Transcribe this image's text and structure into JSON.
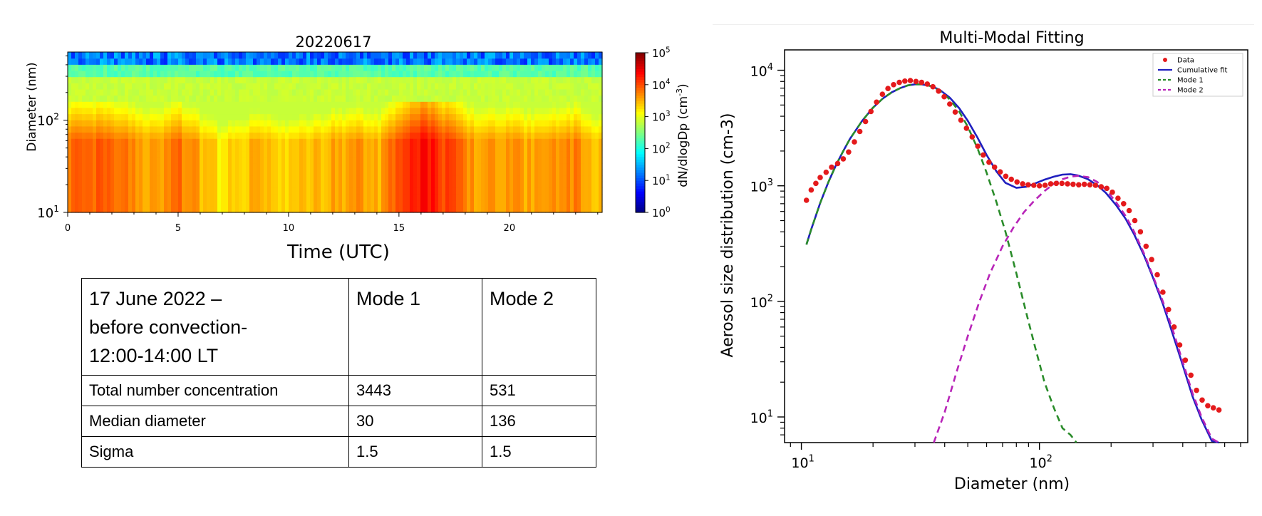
{
  "colors": {
    "data_points": "#e41a1c",
    "cumulative_fit": "#1f1fbf",
    "mode1": "#2a8c2a",
    "mode2": "#b824b8",
    "colormap": "jet"
  },
  "chart_data": [
    {
      "type": "heatmap",
      "title": "20220617",
      "xlabel": "Time (UTC)",
      "ylabel": "Diameter (nm)",
      "xlim": [
        0,
        24.2
      ],
      "ylim": [
        10,
        550
      ],
      "yscale": "log",
      "x_ticks": [
        "0",
        "5",
        "10",
        "15",
        "20"
      ],
      "y_ticks": [
        {
          "base": "10",
          "exp": "1"
        },
        {
          "base": "10",
          "exp": "2"
        }
      ],
      "colorbar": {
        "label": "dN/dlogDp",
        "unit_base": "(cm",
        "unit_exp": "-3",
        "unit_close": ")",
        "scale": "log",
        "range": [
          1,
          100000
        ],
        "ticks": [
          {
            "base": "10",
            "exp": "5"
          },
          {
            "base": "10",
            "exp": "4"
          },
          {
            "base": "10",
            "exp": "3"
          },
          {
            "base": "10",
            "exp": "2"
          },
          {
            "base": "10",
            "exp": "1"
          },
          {
            "base": "10",
            "exp": "0"
          }
        ]
      },
      "intensity_by_time": [
        {
          "t": 0,
          "level": 3.9
        },
        {
          "t": 1,
          "level": 3.9
        },
        {
          "t": 2,
          "level": 3.8
        },
        {
          "t": 3,
          "level": 3.7
        },
        {
          "t": 4,
          "level": 3.6
        },
        {
          "t": 5,
          "level": 3.8
        },
        {
          "t": 6,
          "level": 3.5
        },
        {
          "t": 7,
          "level": 3.2
        },
        {
          "t": 8,
          "level": 3.4
        },
        {
          "t": 9,
          "level": 3.5
        },
        {
          "t": 10,
          "level": 3.3
        },
        {
          "t": 11,
          "level": 3.4
        },
        {
          "t": 12,
          "level": 3.6
        },
        {
          "t": 13,
          "level": 3.6
        },
        {
          "t": 14,
          "level": 3.5
        },
        {
          "t": 15,
          "level": 3.9
        },
        {
          "t": 16,
          "level": 4.4
        },
        {
          "t": 17,
          "level": 4.1
        },
        {
          "t": 18,
          "level": 3.7
        },
        {
          "t": 19,
          "level": 3.6
        },
        {
          "t": 20,
          "level": 3.7
        },
        {
          "t": 21,
          "level": 3.5
        },
        {
          "t": 22,
          "level": 3.6
        },
        {
          "t": 23,
          "level": 3.7
        },
        {
          "t": 24,
          "level": 3.4
        }
      ]
    },
    {
      "type": "line",
      "title": "Multi-Modal Fitting",
      "xlabel": "Diameter (nm)",
      "ylabel": "Aerosol size distribution (cm-3)",
      "xscale": "log",
      "yscale": "log",
      "xlim": [
        8.5,
        750
      ],
      "ylim": [
        6,
        15000
      ],
      "x_ticks": [
        {
          "base": "10",
          "exp": "1"
        },
        {
          "base": "10",
          "exp": "2"
        }
      ],
      "y_ticks": [
        {
          "base": "10",
          "exp": "4"
        },
        {
          "base": "10",
          "exp": "3"
        },
        {
          "base": "10",
          "exp": "2"
        },
        {
          "base": "10",
          "exp": "1"
        }
      ],
      "legend_position": "top-right",
      "series": [
        {
          "name": "Data",
          "style": "points",
          "x": [
            10.5,
            11,
            11.5,
            12,
            12.7,
            13.4,
            14.2,
            15,
            15.8,
            16.7,
            17.6,
            18.6,
            19.6,
            20.7,
            21.9,
            23.1,
            24.4,
            25.8,
            27.2,
            28.7,
            30.3,
            32,
            33.8,
            35.7,
            37.7,
            39.8,
            42,
            44.3,
            46.8,
            49.4,
            52.2,
            55.1,
            58.1,
            61.4,
            64.8,
            68.4,
            72.2,
            76.2,
            80.5,
            85,
            89.7,
            94.7,
            100,
            105.6,
            111.5,
            117.7,
            124.3,
            131.2,
            138.5,
            146.2,
            154.4,
            163,
            172.1,
            181.7,
            191.8,
            202.5,
            213.8,
            225.7,
            238.3,
            251.6,
            265.6,
            280.4,
            296,
            312.5,
            330,
            348.4,
            367.8,
            388.3,
            410,
            432.8,
            457,
            482.5,
            509.4,
            537.8,
            567.8
          ],
          "y": [
            750,
            920,
            1050,
            1180,
            1310,
            1450,
            1560,
            1710,
            1960,
            2400,
            2950,
            3600,
            4400,
            5300,
            6200,
            6950,
            7500,
            7850,
            8050,
            8150,
            8000,
            7850,
            7600,
            7200,
            6600,
            5900,
            5100,
            4350,
            3700,
            3150,
            2650,
            2200,
            1850,
            1600,
            1450,
            1320,
            1210,
            1140,
            1080,
            1040,
            1020,
            1010,
            1000,
            1010,
            1040,
            1050,
            1050,
            1040,
            1030,
            1020,
            1030,
            1020,
            1010,
            980,
            950,
            880,
            780,
            700,
            610,
            500,
            400,
            300,
            230,
            170,
            120,
            85,
            60,
            42,
            31,
            23,
            17,
            14,
            12.5,
            12,
            11.5
          ]
        },
        {
          "name": "Cumulative fit",
          "style": "solid",
          "x": [
            10.5,
            11,
            12,
            13,
            14,
            15,
            16,
            18,
            20,
            22,
            24,
            26,
            28,
            30,
            32,
            35,
            38,
            42,
            46,
            50,
            55,
            60,
            66,
            72,
            80,
            88,
            96,
            105,
            115,
            125,
            135,
            145,
            160,
            175,
            190,
            210,
            230,
            250,
            275,
            300,
            330,
            360,
            400,
            440,
            480,
            530,
            567
          ],
          "y": [
            310,
            420,
            710,
            1080,
            1520,
            2000,
            2550,
            3650,
            4750,
            5700,
            6450,
            7000,
            7400,
            7550,
            7550,
            7300,
            6800,
            5800,
            4700,
            3650,
            2600,
            1850,
            1330,
            1060,
            960,
            980,
            1050,
            1130,
            1200,
            1250,
            1260,
            1230,
            1140,
            1010,
            870,
            680,
            520,
            380,
            250,
            160,
            95,
            55,
            28,
            15,
            9.5,
            6.2,
            6
          ]
        },
        {
          "name": "Mode 1",
          "style": "dashed",
          "x": [
            10.5,
            11,
            12,
            13,
            14,
            15,
            16,
            18,
            20,
            22,
            24,
            26,
            28,
            30,
            32,
            35,
            38,
            42,
            46,
            50,
            55,
            60,
            66,
            72,
            80,
            88,
            96,
            105,
            115,
            125,
            135,
            143
          ],
          "y": [
            310,
            420,
            710,
            1080,
            1520,
            2000,
            2550,
            3650,
            4750,
            5700,
            6450,
            7000,
            7400,
            7550,
            7550,
            7300,
            6700,
            5600,
            4400,
            3250,
            2100,
            1300,
            720,
            400,
            175,
            80,
            40,
            20,
            12,
            8,
            7,
            6
          ]
        },
        {
          "name": "Mode 2",
          "style": "dashed",
          "x": [
            36,
            40,
            45,
            50,
            56,
            62,
            70,
            78,
            86,
            95,
            105,
            115,
            125,
            135,
            145,
            160,
            175,
            190,
            210,
            230,
            250,
            275,
            300,
            330,
            360,
            400,
            440,
            480,
            530,
            567
          ],
          "y": [
            6,
            11,
            25,
            50,
            100,
            175,
            300,
            440,
            590,
            740,
            900,
            1040,
            1140,
            1200,
            1220,
            1190,
            1080,
            930,
            720,
            550,
            400,
            260,
            165,
            100,
            60,
            30,
            16,
            10,
            6.5,
            6
          ]
        }
      ]
    }
  ],
  "table": {
    "header": {
      "title_lines": [
        "17 June 2022 –",
        "before convection-",
        "12:00-14:00 LT"
      ],
      "mode1": "Mode 1",
      "mode2": "Mode 2"
    },
    "rows": [
      {
        "label": "Total number concentration",
        "mode1": "3443",
        "mode2": "531"
      },
      {
        "label": "Median diameter",
        "mode1": "30",
        "mode2": "136"
      },
      {
        "label": "Sigma",
        "mode1": "1.5",
        "mode2": "1.5"
      }
    ]
  }
}
